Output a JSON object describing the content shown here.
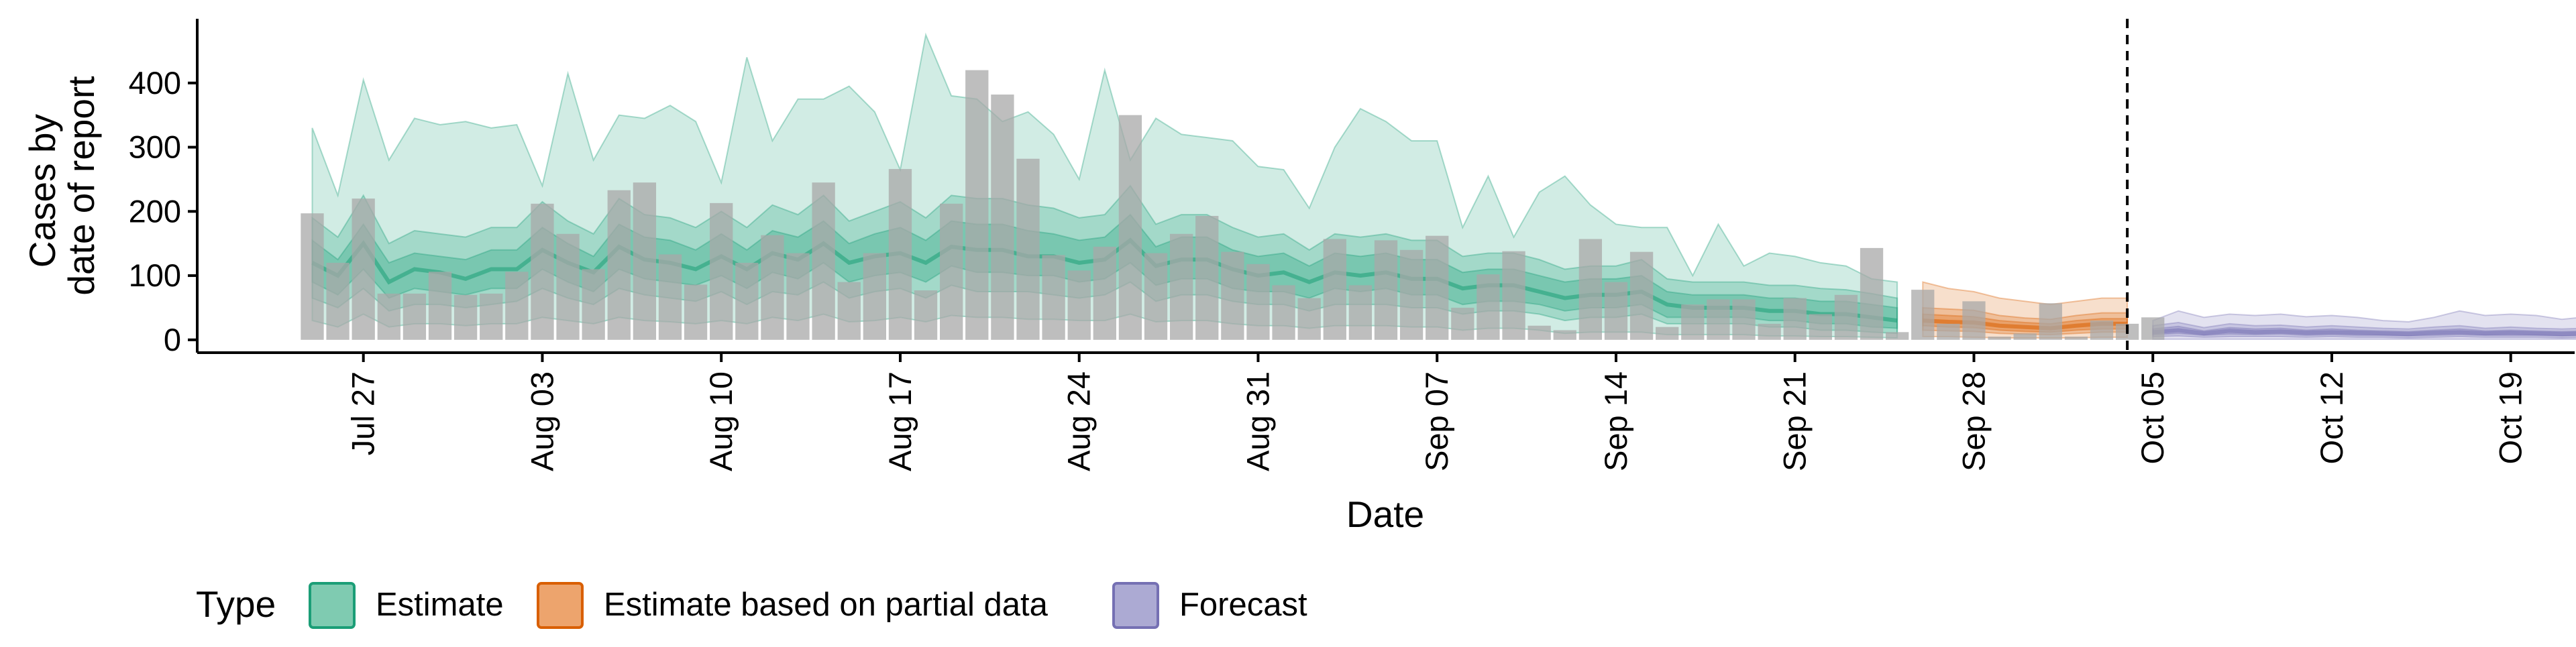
{
  "chart_data": {
    "type": "area",
    "xlabel": "Date",
    "ylabel_lines": [
      "Cases by",
      "date of report"
    ],
    "x_start": "2020-07-25",
    "x_ticks": [
      {
        "label": "Jul 27",
        "day": 2
      },
      {
        "label": "Aug 03",
        "day": 9
      },
      {
        "label": "Aug 10",
        "day": 16
      },
      {
        "label": "Aug 17",
        "day": 23
      },
      {
        "label": "Aug 24",
        "day": 30
      },
      {
        "label": "Aug 31",
        "day": 37
      },
      {
        "label": "Sep 07",
        "day": 44
      },
      {
        "label": "Sep 14",
        "day": 51
      },
      {
        "label": "Sep 21",
        "day": 58
      },
      {
        "label": "Sep 28",
        "day": 65
      },
      {
        "label": "Oct 05",
        "day": 72
      },
      {
        "label": "Oct 12",
        "day": 79
      },
      {
        "label": "Oct 19",
        "day": 86
      }
    ],
    "y_ticks": [
      0,
      100,
      200,
      300,
      400
    ],
    "ylim": [
      -20,
      500
    ],
    "xlim": [
      -4.5,
      88.5
    ],
    "cutoff_day": 71,
    "reported_cases": [
      197,
      120,
      220,
      72,
      72,
      106,
      70,
      72,
      106,
      212,
      165,
      110,
      233,
      245,
      133,
      86,
      213,
      120,
      163,
      135,
      245,
      90,
      135,
      266,
      77,
      212,
      420,
      382,
      282,
      132,
      108,
      145,
      350,
      135,
      165,
      193,
      137,
      118,
      85,
      65,
      157,
      85,
      155,
      140,
      162,
      50,
      102,
      138,
      22,
      15,
      157,
      90,
      137,
      20,
      55,
      63,
      63,
      25,
      65,
      40,
      70,
      143,
      12,
      78,
      25,
      60,
      5,
      10,
      57,
      5,
      30,
      25,
      35
    ],
    "estimate": {
      "start_day": 0,
      "median": [
        120,
        100,
        150,
        90,
        110,
        105,
        95,
        110,
        110,
        140,
        120,
        105,
        145,
        125,
        120,
        110,
        130,
        110,
        135,
        125,
        150,
        120,
        130,
        135,
        120,
        145,
        140,
        140,
        130,
        130,
        120,
        125,
        155,
        115,
        125,
        125,
        110,
        100,
        105,
        90,
        105,
        100,
        105,
        95,
        95,
        80,
        85,
        85,
        75,
        65,
        70,
        70,
        75,
        55,
        50,
        50,
        50,
        45,
        45,
        40,
        40,
        35,
        30
      ],
      "inner": [
        [
          90,
          155
        ],
        [
          70,
          125
        ],
        [
          110,
          180
        ],
        [
          65,
          120
        ],
        [
          80,
          135
        ],
        [
          75,
          130
        ],
        [
          70,
          125
        ],
        [
          80,
          140
        ],
        [
          80,
          140
        ],
        [
          110,
          175
        ],
        [
          90,
          150
        ],
        [
          75,
          130
        ],
        [
          110,
          180
        ],
        [
          95,
          160
        ],
        [
          90,
          155
        ],
        [
          85,
          140
        ],
        [
          100,
          165
        ],
        [
          80,
          140
        ],
        [
          105,
          170
        ],
        [
          95,
          160
        ],
        [
          120,
          185
        ],
        [
          90,
          150
        ],
        [
          100,
          165
        ],
        [
          105,
          175
        ],
        [
          90,
          155
        ],
        [
          115,
          185
        ],
        [
          105,
          180
        ],
        [
          105,
          180
        ],
        [
          100,
          170
        ],
        [
          100,
          165
        ],
        [
          90,
          155
        ],
        [
          95,
          160
        ],
        [
          120,
          195
        ],
        [
          85,
          145
        ],
        [
          95,
          160
        ],
        [
          95,
          160
        ],
        [
          80,
          140
        ],
        [
          75,
          130
        ],
        [
          75,
          135
        ],
        [
          65,
          115
        ],
        [
          80,
          135
        ],
        [
          75,
          130
        ],
        [
          80,
          135
        ],
        [
          70,
          125
        ],
        [
          70,
          125
        ],
        [
          55,
          105
        ],
        [
          60,
          110
        ],
        [
          60,
          110
        ],
        [
          55,
          100
        ],
        [
          45,
          90
        ],
        [
          50,
          95
        ],
        [
          50,
          95
        ],
        [
          55,
          100
        ],
        [
          35,
          75
        ],
        [
          35,
          70
        ],
        [
          35,
          70
        ],
        [
          35,
          70
        ],
        [
          30,
          65
        ],
        [
          30,
          65
        ],
        [
          25,
          60
        ],
        [
          25,
          60
        ],
        [
          20,
          55
        ],
        [
          18,
          50
        ]
      ],
      "mid": [
        [
          65,
          190
        ],
        [
          50,
          160
        ],
        [
          80,
          225
        ],
        [
          45,
          150
        ],
        [
          55,
          170
        ],
        [
          55,
          165
        ],
        [
          50,
          160
        ],
        [
          55,
          175
        ],
        [
          60,
          175
        ],
        [
          80,
          215
        ],
        [
          65,
          185
        ],
        [
          55,
          165
        ],
        [
          80,
          220
        ],
        [
          70,
          195
        ],
        [
          65,
          190
        ],
        [
          60,
          175
        ],
        [
          75,
          200
        ],
        [
          55,
          175
        ],
        [
          75,
          210
        ],
        [
          70,
          195
        ],
        [
          90,
          225
        ],
        [
          65,
          185
        ],
        [
          75,
          200
        ],
        [
          80,
          215
        ],
        [
          65,
          190
        ],
        [
          85,
          225
        ],
        [
          75,
          220
        ],
        [
          75,
          220
        ],
        [
          75,
          210
        ],
        [
          70,
          205
        ],
        [
          65,
          190
        ],
        [
          70,
          195
        ],
        [
          90,
          240
        ],
        [
          60,
          180
        ],
        [
          70,
          195
        ],
        [
          70,
          195
        ],
        [
          60,
          175
        ],
        [
          55,
          160
        ],
        [
          55,
          165
        ],
        [
          45,
          140
        ],
        [
          55,
          165
        ],
        [
          55,
          160
        ],
        [
          55,
          165
        ],
        [
          50,
          155
        ],
        [
          50,
          155
        ],
        [
          40,
          130
        ],
        [
          45,
          135
        ],
        [
          45,
          135
        ],
        [
          40,
          125
        ],
        [
          30,
          110
        ],
        [
          35,
          115
        ],
        [
          35,
          115
        ],
        [
          40,
          125
        ],
        [
          25,
          95
        ],
        [
          25,
          90
        ],
        [
          25,
          90
        ],
        [
          25,
          90
        ],
        [
          20,
          85
        ],
        [
          20,
          85
        ],
        [
          15,
          80
        ],
        [
          15,
          78
        ],
        [
          12,
          72
        ],
        [
          10,
          65
        ]
      ],
      "outer": [
        [
          30,
          330
        ],
        [
          20,
          225
        ],
        [
          40,
          405
        ],
        [
          20,
          280
        ],
        [
          25,
          345
        ],
        [
          25,
          335
        ],
        [
          22,
          340
        ],
        [
          25,
          330
        ],
        [
          25,
          335
        ],
        [
          35,
          240
        ],
        [
          30,
          415
        ],
        [
          25,
          280
        ],
        [
          35,
          350
        ],
        [
          30,
          345
        ],
        [
          28,
          365
        ],
        [
          25,
          340
        ],
        [
          30,
          245
        ],
        [
          25,
          440
        ],
        [
          35,
          310
        ],
        [
          30,
          375
        ],
        [
          40,
          375
        ],
        [
          28,
          395
        ],
        [
          30,
          355
        ],
        [
          35,
          265
        ],
        [
          28,
          475
        ],
        [
          38,
          380
        ],
        [
          35,
          375
        ],
        [
          35,
          340
        ],
        [
          32,
          355
        ],
        [
          32,
          320
        ],
        [
          30,
          250
        ],
        [
          30,
          420
        ],
        [
          40,
          280
        ],
        [
          28,
          345
        ],
        [
          30,
          320
        ],
        [
          30,
          315
        ],
        [
          25,
          310
        ],
        [
          22,
          270
        ],
        [
          22,
          265
        ],
        [
          18,
          205
        ],
        [
          22,
          300
        ],
        [
          22,
          360
        ],
        [
          22,
          340
        ],
        [
          20,
          310
        ],
        [
          20,
          310
        ],
        [
          15,
          175
        ],
        [
          18,
          255
        ],
        [
          18,
          160
        ],
        [
          15,
          230
        ],
        [
          10,
          255
        ],
        [
          12,
          210
        ],
        [
          12,
          180
        ],
        [
          12,
          175
        ],
        [
          8,
          175
        ],
        [
          8,
          100
        ],
        [
          8,
          180
        ],
        [
          8,
          115
        ],
        [
          6,
          135
        ],
        [
          6,
          130
        ],
        [
          5,
          120
        ],
        [
          5,
          115
        ],
        [
          4,
          95
        ],
        [
          3,
          90
        ]
      ]
    },
    "partial": {
      "start_day": 63,
      "median": [
        30,
        28,
        27,
        22,
        20,
        18,
        22,
        25,
        25
      ],
      "inner": [
        [
          22,
          40
        ],
        [
          20,
          38
        ],
        [
          19,
          36
        ],
        [
          15,
          30
        ],
        [
          13,
          27
        ],
        [
          12,
          25
        ],
        [
          15,
          30
        ],
        [
          17,
          33
        ],
        [
          17,
          33
        ]
      ],
      "mid": [
        [
          15,
          50
        ],
        [
          14,
          48
        ],
        [
          13,
          46
        ],
        [
          10,
          38
        ],
        [
          9,
          34
        ],
        [
          8,
          32
        ],
        [
          10,
          38
        ],
        [
          12,
          42
        ],
        [
          12,
          42
        ]
      ],
      "outer": [
        [
          5,
          90
        ],
        [
          5,
          80
        ],
        [
          4,
          75
        ],
        [
          3,
          65
        ],
        [
          3,
          60
        ],
        [
          3,
          55
        ],
        [
          3,
          60
        ],
        [
          4,
          65
        ],
        [
          4,
          65
        ]
      ]
    },
    "forecast": {
      "start_day": 72,
      "median": [
        12,
        15,
        10,
        14,
        12,
        13,
        11,
        12,
        11,
        10,
        9,
        11,
        12,
        10,
        11,
        10,
        9,
        10,
        9
      ],
      "inner": [
        [
          8,
          17
        ],
        [
          10,
          21
        ],
        [
          7,
          14
        ],
        [
          9,
          19
        ],
        [
          8,
          17
        ],
        [
          9,
          18
        ],
        [
          7,
          15
        ],
        [
          8,
          17
        ],
        [
          7,
          15
        ],
        [
          7,
          14
        ],
        [
          6,
          13
        ],
        [
          7,
          15
        ],
        [
          8,
          17
        ],
        [
          7,
          14
        ],
        [
          7,
          15
        ],
        [
          7,
          14
        ],
        [
          6,
          13
        ],
        [
          7,
          14
        ],
        [
          6,
          13
        ]
      ],
      "mid": [
        [
          5,
          22
        ],
        [
          6,
          27
        ],
        [
          4,
          19
        ],
        [
          5,
          25
        ],
        [
          5,
          22
        ],
        [
          5,
          23
        ],
        [
          4,
          20
        ],
        [
          5,
          22
        ],
        [
          4,
          20
        ],
        [
          4,
          18
        ],
        [
          3,
          17
        ],
        [
          4,
          20
        ],
        [
          5,
          22
        ],
        [
          4,
          18
        ],
        [
          4,
          20
        ],
        [
          4,
          18
        ],
        [
          3,
          17
        ],
        [
          4,
          18
        ],
        [
          3,
          17
        ]
      ],
      "outer": [
        [
          1,
          30
        ],
        [
          1,
          45
        ],
        [
          1,
          35
        ],
        [
          1,
          40
        ],
        [
          1,
          38
        ],
        [
          1,
          40
        ],
        [
          1,
          36
        ],
        [
          1,
          38
        ],
        [
          1,
          35
        ],
        [
          1,
          30
        ],
        [
          1,
          28
        ],
        [
          1,
          35
        ],
        [
          1,
          45
        ],
        [
          1,
          38
        ],
        [
          1,
          40
        ],
        [
          1,
          38
        ],
        [
          1,
          32
        ],
        [
          1,
          36
        ],
        [
          1,
          34
        ]
      ]
    },
    "colors": {
      "estimate": "#1b9e77",
      "partial": "#d95f02",
      "forecast": "#7570b3",
      "bars": "#a8a8a8"
    },
    "legend": {
      "title": "Type",
      "items": [
        {
          "label": "Estimate",
          "fill": "#7fcbb1",
          "stroke": "#1b9e77"
        },
        {
          "label": "Estimate based on partial data",
          "fill": "#eda46d",
          "stroke": "#d95f02"
        },
        {
          "label": "Forecast",
          "fill": "#acaad3",
          "stroke": "#7570b3"
        }
      ],
      "placement": "bottom"
    }
  }
}
